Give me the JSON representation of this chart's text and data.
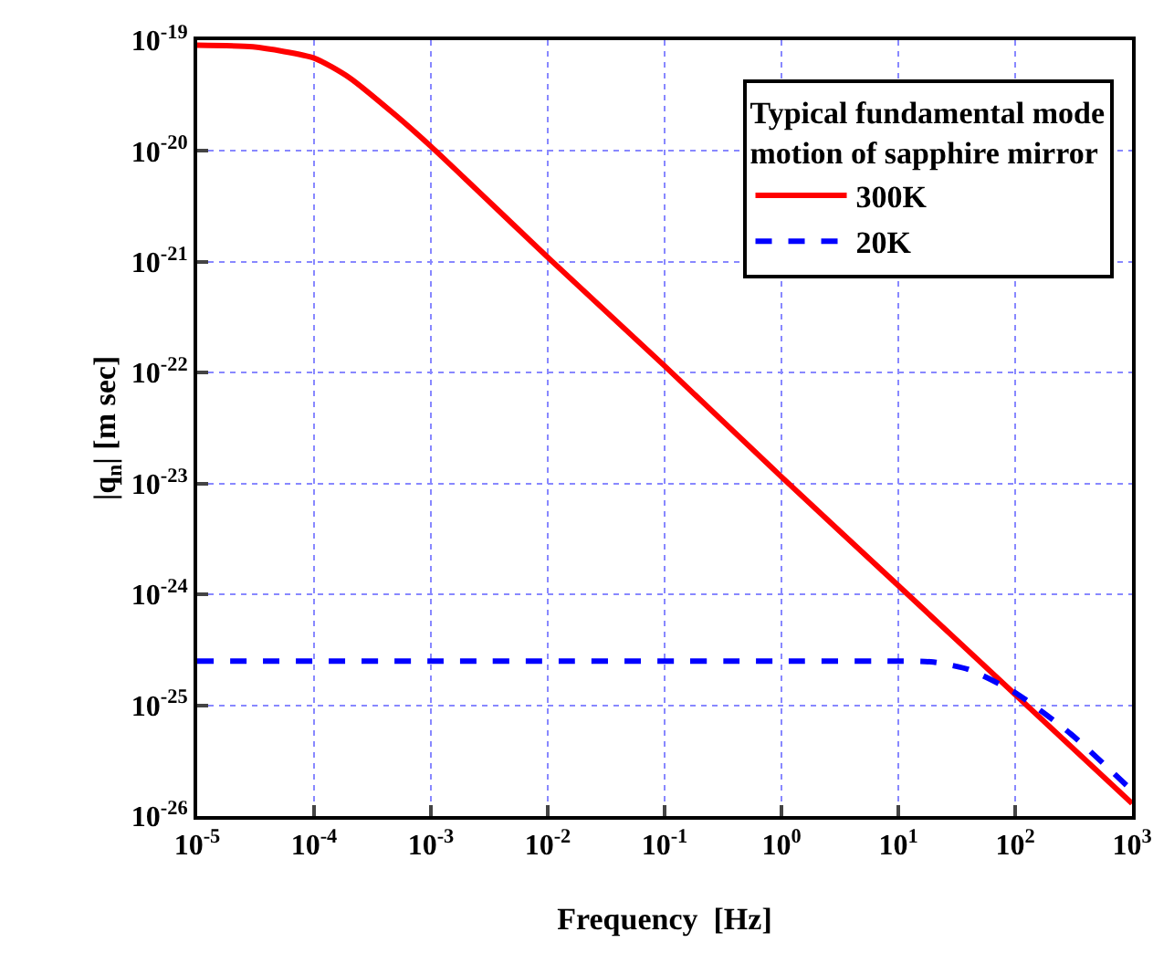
{
  "chart_data": {
    "type": "line",
    "xlabel": "Frequency  [Hz]",
    "ylabel": "|q$_{n}$| [m sec]",
    "legend_title": "Typical fundamental mode\nmotion of sapphire mirror",
    "log": "xy",
    "grid": true,
    "legend": "top right",
    "marker": "none",
    "xlim": [
      1e-05,
      1000
    ],
    "ylim": [
      1e-26,
      1e-19
    ],
    "xticks": [
      {
        "value": 1e-05,
        "label": "10$^{-5}$"
      },
      {
        "value": 0.0001,
        "label": "10$^{-4}$"
      },
      {
        "value": 0.001,
        "label": "10$^{-3}$"
      },
      {
        "value": 0.01,
        "label": "10$^{-2}$"
      },
      {
        "value": 0.1,
        "label": "10$^{-1}$"
      },
      {
        "value": 1,
        "label": "10$^{0}$"
      },
      {
        "value": 10,
        "label": "10$^{1}$"
      },
      {
        "value": 100,
        "label": "10$^{2}$"
      },
      {
        "value": 1000,
        "label": "10$^{3}$"
      }
    ],
    "yticks": [
      {
        "value": 1e-26,
        "label": "10$^{-26}$"
      },
      {
        "value": 1e-25,
        "label": "10$^{-25}$"
      },
      {
        "value": 1e-24,
        "label": "10$^{-24}$"
      },
      {
        "value": 1e-23,
        "label": "10$^{-23}$"
      },
      {
        "value": 1e-22,
        "label": "10$^{-22}$"
      },
      {
        "value": 1e-21,
        "label": "10$^{-21}$"
      },
      {
        "value": 1e-20,
        "label": "10$^{-20}$"
      },
      {
        "value": 1e-19,
        "label": "10$^{-19}$"
      }
    ],
    "series": [
      {
        "name": "300K",
        "color": "#ff0000",
        "line_style": "solid",
        "x": [
          1e-05,
          3e-05,
          0.0001,
          0.0002,
          0.0005,
          0.001,
          0.01,
          0.1,
          1,
          10,
          100,
          1000
        ],
        "values": [
          9e-20,
          8.7e-20,
          6.9e-20,
          4.6e-20,
          2.1e-20,
          1.1e-20,
          1.1e-21,
          1.15e-22,
          1.15e-23,
          1.2e-24,
          1.25e-25,
          1.3e-26
        ]
      },
      {
        "name": "20K",
        "color": "#0000ff",
        "line_style": "dashed",
        "x": [
          1e-05,
          0.001,
          1,
          10,
          20,
          40,
          100,
          300,
          1000
        ],
        "values": [
          2.5e-25,
          2.5e-25,
          2.5e-25,
          2.5e-25,
          2.45e-25,
          2.1e-25,
          1.3e-25,
          5.5e-26,
          1.7e-26
        ]
      }
    ]
  }
}
